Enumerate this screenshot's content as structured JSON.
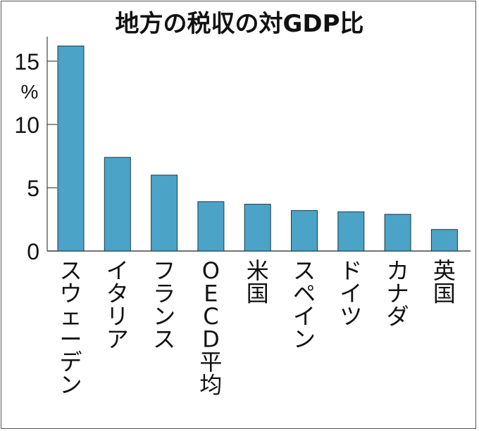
{
  "chart_data": {
    "type": "bar",
    "title": "地方の税収の対GDP比",
    "xlabel": "",
    "ylabel": "%",
    "ylim": [
      0,
      16.5
    ],
    "yticks": [
      0,
      5,
      10,
      15
    ],
    "ytick_labels": [
      "0",
      "5",
      "10",
      "15"
    ],
    "grid": false,
    "categories": [
      "スウェーデン",
      "イタリア",
      "フランス",
      "OECD平均",
      "米国",
      "スペイン",
      "ドイツ",
      "カナダ",
      "英国"
    ],
    "values": [
      16.2,
      7.4,
      6.0,
      3.9,
      3.7,
      3.2,
      3.1,
      2.9,
      1.7
    ],
    "bar_color": "#4BA3C8",
    "bar_edge_color": "#1f3a48"
  }
}
